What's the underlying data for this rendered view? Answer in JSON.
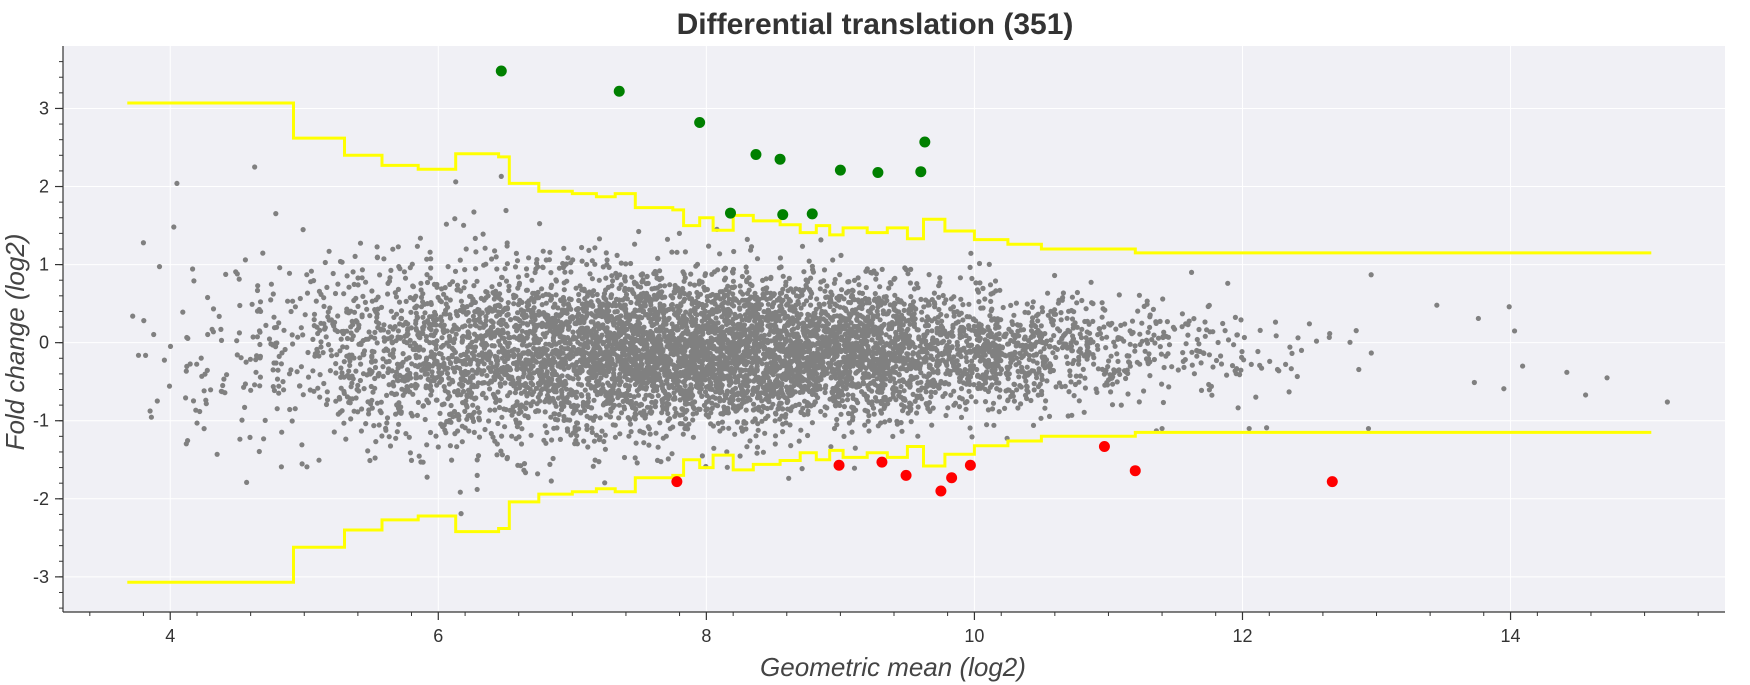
{
  "chart_data": {
    "type": "scatter",
    "title": "Differential translation (351)",
    "xlabel": "Geometric mean (log2)",
    "ylabel": "Fold change (log2)",
    "xlim": [
      3.2,
      15.6
    ],
    "ylim": [
      -3.45,
      3.8
    ],
    "x_ticks": [
      "4",
      "6",
      "8",
      "10",
      "12",
      "14"
    ],
    "x_tick_values": [
      4,
      6,
      8,
      10,
      12,
      14
    ],
    "y_ticks": [
      "3",
      "2",
      "1",
      "0",
      "-1",
      "-2",
      "-3"
    ],
    "y_tick_values": [
      3,
      2,
      1,
      0,
      -1,
      -2,
      -3
    ],
    "grid": true,
    "background_color": "#f0f0f5",
    "colors": {
      "background_genes": "#808080",
      "up": "#008000",
      "down": "#ff0000",
      "threshold": "#ffff00"
    },
    "series": [
      {
        "color": "#008000",
        "points": [
          [
            6.47,
            3.48
          ],
          [
            7.35,
            3.22
          ],
          [
            7.95,
            2.82
          ],
          [
            8.37,
            2.41
          ],
          [
            8.55,
            2.35
          ],
          [
            9.0,
            2.21
          ],
          [
            9.28,
            2.18
          ],
          [
            9.6,
            2.19
          ],
          [
            9.63,
            2.57
          ],
          [
            8.18,
            1.66
          ],
          [
            8.57,
            1.64
          ],
          [
            8.79,
            1.65
          ]
        ]
      },
      {
        "color": "#ff0000",
        "points": [
          [
            7.78,
            -1.78
          ],
          [
            8.99,
            -1.57
          ],
          [
            9.31,
            -1.53
          ],
          [
            9.49,
            -1.7
          ],
          [
            9.75,
            -1.9
          ],
          [
            9.83,
            -1.73
          ],
          [
            9.97,
            -1.57
          ],
          [
            10.97,
            -1.33
          ],
          [
            11.2,
            -1.64
          ],
          [
            12.67,
            -1.78
          ]
        ]
      }
    ],
    "background_scatter": {
      "color": "#808080",
      "points": [
        [
          3.72,
          0.34
        ],
        [
          3.8,
          1.28
        ],
        [
          4.05,
          2.04
        ],
        [
          4.63,
          2.25
        ],
        [
          6.13,
          2.06
        ],
        [
          6.47,
          2.13
        ],
        [
          4.2,
          -1.03
        ],
        [
          4.57,
          -1.79
        ],
        [
          6.29,
          -1.88
        ],
        [
          6.17,
          -2.19
        ],
        [
          5.02,
          -1.59
        ],
        [
          4.35,
          -1.43
        ],
        [
          11.62,
          0.9
        ],
        [
          11.89,
          0.76
        ],
        [
          12.96,
          0.87
        ],
        [
          13.76,
          0.31
        ],
        [
          13.99,
          0.46
        ],
        [
          14.03,
          0.15
        ],
        [
          14.09,
          -0.3
        ],
        [
          14.42,
          -0.38
        ],
        [
          14.56,
          -0.67
        ],
        [
          14.72,
          -0.45
        ],
        [
          15.17,
          -0.76
        ],
        [
          12.05,
          -1.1
        ],
        [
          11.4,
          -1.1
        ],
        [
          12.18,
          -1.09
        ],
        [
          12.94,
          -1.1
        ],
        [
          13.45,
          0.48
        ],
        [
          13.73,
          -0.51
        ],
        [
          13.95,
          -0.59
        ]
      ]
    },
    "upper_threshold": [
      [
        3.68,
        3.07
      ],
      [
        4.92,
        3.07
      ],
      [
        4.92,
        2.62
      ],
      [
        5.3,
        2.62
      ],
      [
        5.3,
        2.4
      ],
      [
        5.58,
        2.4
      ],
      [
        5.58,
        2.27
      ],
      [
        5.85,
        2.27
      ],
      [
        5.85,
        2.22
      ],
      [
        6.13,
        2.22
      ],
      [
        6.13,
        2.42
      ],
      [
        6.45,
        2.42
      ],
      [
        6.45,
        2.38
      ],
      [
        6.53,
        2.38
      ],
      [
        6.53,
        2.04
      ],
      [
        6.75,
        2.04
      ],
      [
        6.75,
        1.94
      ],
      [
        7.0,
        1.94
      ],
      [
        7.0,
        1.91
      ],
      [
        7.18,
        1.91
      ],
      [
        7.18,
        1.87
      ],
      [
        7.32,
        1.87
      ],
      [
        7.32,
        1.91
      ],
      [
        7.47,
        1.91
      ],
      [
        7.47,
        1.73
      ],
      [
        7.75,
        1.73
      ],
      [
        7.75,
        1.7
      ],
      [
        7.83,
        1.7
      ],
      [
        7.83,
        1.5
      ],
      [
        7.95,
        1.5
      ],
      [
        7.95,
        1.6
      ],
      [
        8.05,
        1.6
      ],
      [
        8.05,
        1.44
      ],
      [
        8.2,
        1.44
      ],
      [
        8.2,
        1.63
      ],
      [
        8.35,
        1.63
      ],
      [
        8.35,
        1.56
      ],
      [
        8.55,
        1.56
      ],
      [
        8.55,
        1.51
      ],
      [
        8.7,
        1.51
      ],
      [
        8.7,
        1.41
      ],
      [
        8.82,
        1.41
      ],
      [
        8.82,
        1.5
      ],
      [
        8.92,
        1.5
      ],
      [
        8.92,
        1.38
      ],
      [
        9.02,
        1.38
      ],
      [
        9.02,
        1.47
      ],
      [
        9.2,
        1.47
      ],
      [
        9.2,
        1.41
      ],
      [
        9.35,
        1.41
      ],
      [
        9.35,
        1.47
      ],
      [
        9.5,
        1.47
      ],
      [
        9.5,
        1.33
      ],
      [
        9.62,
        1.33
      ],
      [
        9.62,
        1.58
      ],
      [
        9.78,
        1.58
      ],
      [
        9.78,
        1.43
      ],
      [
        10.0,
        1.43
      ],
      [
        10.0,
        1.32
      ],
      [
        10.25,
        1.32
      ],
      [
        10.25,
        1.26
      ],
      [
        10.5,
        1.26
      ],
      [
        10.5,
        1.2
      ],
      [
        10.75,
        1.2
      ],
      [
        10.75,
        1.2
      ],
      [
        11.2,
        1.2
      ],
      [
        11.2,
        1.15
      ],
      [
        15.05,
        1.15
      ]
    ],
    "lower_threshold": [
      [
        3.68,
        -3.07
      ],
      [
        4.92,
        -3.07
      ],
      [
        4.92,
        -2.62
      ],
      [
        5.3,
        -2.62
      ],
      [
        5.3,
        -2.4
      ],
      [
        5.58,
        -2.4
      ],
      [
        5.58,
        -2.27
      ],
      [
        5.85,
        -2.27
      ],
      [
        5.85,
        -2.22
      ],
      [
        6.13,
        -2.22
      ],
      [
        6.13,
        -2.42
      ],
      [
        6.45,
        -2.42
      ],
      [
        6.45,
        -2.38
      ],
      [
        6.53,
        -2.38
      ],
      [
        6.53,
        -2.04
      ],
      [
        6.75,
        -2.04
      ],
      [
        6.75,
        -1.94
      ],
      [
        7.0,
        -1.94
      ],
      [
        7.0,
        -1.91
      ],
      [
        7.18,
        -1.91
      ],
      [
        7.18,
        -1.87
      ],
      [
        7.32,
        -1.87
      ],
      [
        7.32,
        -1.91
      ],
      [
        7.47,
        -1.91
      ],
      [
        7.47,
        -1.73
      ],
      [
        7.75,
        -1.73
      ],
      [
        7.75,
        -1.7
      ],
      [
        7.83,
        -1.7
      ],
      [
        7.83,
        -1.5
      ],
      [
        7.95,
        -1.5
      ],
      [
        7.95,
        -1.6
      ],
      [
        8.05,
        -1.6
      ],
      [
        8.05,
        -1.44
      ],
      [
        8.2,
        -1.44
      ],
      [
        8.2,
        -1.63
      ],
      [
        8.35,
        -1.63
      ],
      [
        8.35,
        -1.56
      ],
      [
        8.55,
        -1.56
      ],
      [
        8.55,
        -1.51
      ],
      [
        8.7,
        -1.51
      ],
      [
        8.7,
        -1.41
      ],
      [
        8.82,
        -1.41
      ],
      [
        8.82,
        -1.5
      ],
      [
        8.92,
        -1.5
      ],
      [
        8.92,
        -1.38
      ],
      [
        9.02,
        -1.38
      ],
      [
        9.02,
        -1.47
      ],
      [
        9.2,
        -1.47
      ],
      [
        9.2,
        -1.41
      ],
      [
        9.35,
        -1.41
      ],
      [
        9.35,
        -1.47
      ],
      [
        9.5,
        -1.47
      ],
      [
        9.5,
        -1.33
      ],
      [
        9.62,
        -1.33
      ],
      [
        9.62,
        -1.58
      ],
      [
        9.78,
        -1.58
      ],
      [
        9.78,
        -1.43
      ],
      [
        10.0,
        -1.43
      ],
      [
        10.0,
        -1.32
      ],
      [
        10.25,
        -1.32
      ],
      [
        10.25,
        -1.26
      ],
      [
        10.5,
        -1.26
      ],
      [
        10.5,
        -1.2
      ],
      [
        10.75,
        -1.2
      ],
      [
        10.75,
        -1.2
      ],
      [
        11.2,
        -1.2
      ],
      [
        11.2,
        -1.15
      ],
      [
        15.05,
        -1.15
      ]
    ]
  }
}
